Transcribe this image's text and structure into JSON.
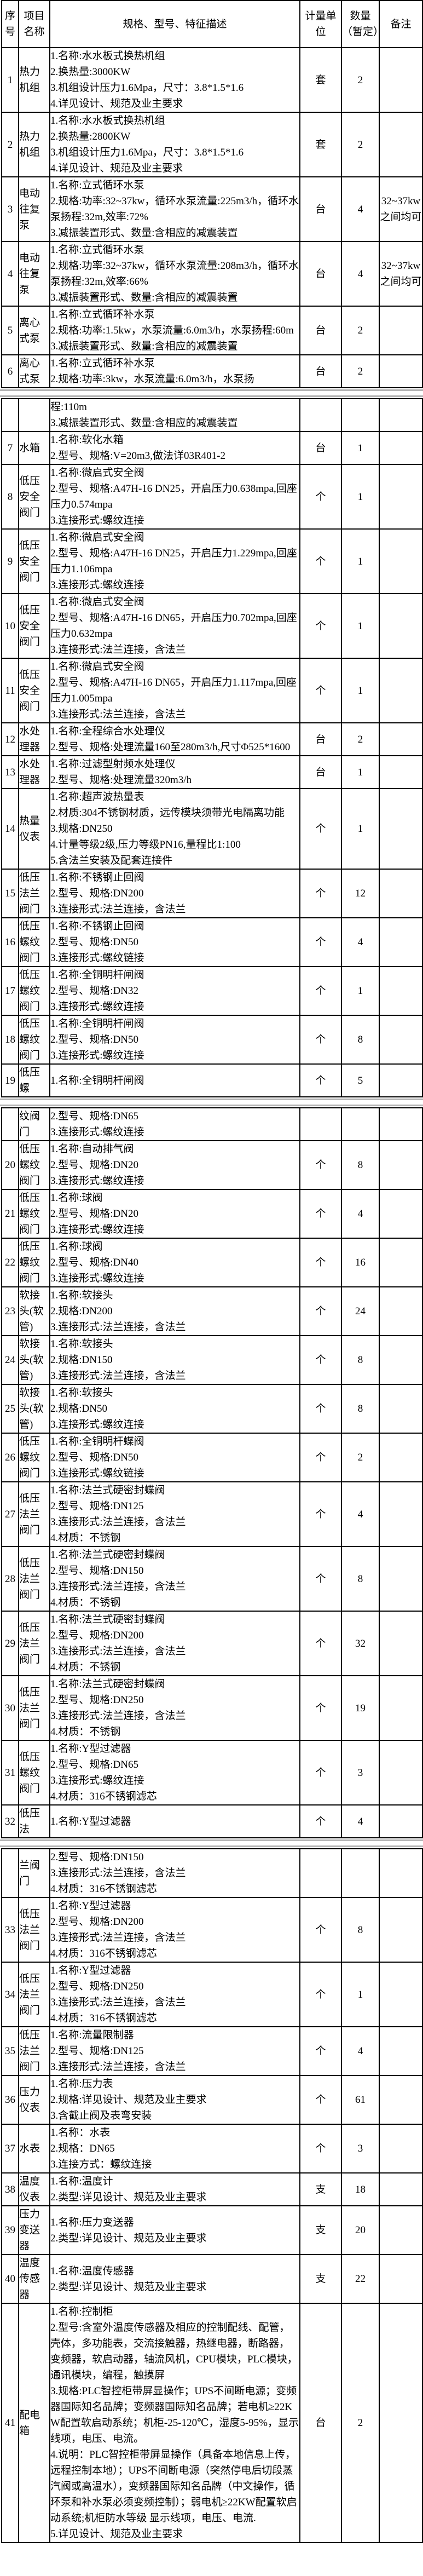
{
  "colors": {
    "border": "#000000",
    "text": "#000000",
    "page_gap_line": "#b5b5b5",
    "background": "#ffffff"
  },
  "table": {
    "columns": [
      "序号",
      "项目名称",
      "规格、型号、特征描述",
      "计量单位",
      "数量（暂定）",
      "备注"
    ],
    "pages": [
      {
        "rows": [
          {
            "no": "1",
            "name": "热力机组",
            "lines": [
              "1.名称:水水板式换热机组",
              "2.换热量:3000KW",
              "3.机组设计压力1.6Mpa，尺寸：3.8*1.5*1.6",
              "4.详见设计、规范及业主要求"
            ],
            "unit": "套",
            "qty": "2",
            "note": ""
          },
          {
            "no": "2",
            "name": "热力机组",
            "lines": [
              "1.名称:水水板式换热机组",
              "2.换热量:2800KW",
              "3.机组设计压力1.6Mpa，尺寸：3.8*1.5*1.6",
              "4.详见设计、规范及业主要求"
            ],
            "unit": "套",
            "qty": "2",
            "note": ""
          },
          {
            "no": "3",
            "name": "电动往复泵",
            "lines": [
              "1.名称:立式循环水泵",
              "2.规格:功率:32~37kw，循环水泵流量:225m3/h，循环水泵扬程:32m,效率:72%",
              "3.减振装置形式、数量:含相应的减震装置"
            ],
            "unit": "台",
            "qty": "4",
            "note": "32~37kw之间均可"
          },
          {
            "no": "4",
            "name": "电动往复泵",
            "lines": [
              "1.名称:立式循环水泵",
              "2.规格:功率:32~37kw，循环水泵流量:208m3/h，循环水泵扬程:32m,效率:66%",
              "3.减振装置形式、数量:含相应的减震装置"
            ],
            "unit": "台",
            "qty": "4",
            "note": "32~37kw之间均可"
          },
          {
            "no": "5",
            "name": "离心式泵",
            "lines": [
              "1.名称:立式循环补水泵",
              "2.规格:功率:1.5kw，水泵流量:6.0m3/h，水泵扬程:60m",
              "3.减振装置形式、数量:含相应的减震装置"
            ],
            "unit": "台",
            "qty": "2",
            "note": ""
          },
          {
            "no": "6",
            "name": "离心式泵",
            "lines": [
              "1.名称:立式循环补水泵",
              "2.规格:功率:3kw，水泵流量:6.0m3/h，水泵扬"
            ],
            "unit": "台",
            "qty": "2",
            "note": ""
          }
        ]
      },
      {
        "rows": [
          {
            "no": "",
            "name": "",
            "lines": [
              "程:110m",
              "3.减振装置形式、数量:含相应的减震装置"
            ],
            "unit": "",
            "qty": "",
            "note": ""
          },
          {
            "no": "7",
            "name": "水箱",
            "lines": [
              "1.名称:软化水箱",
              "2.型号、规格:V=20m3,做法详03R401-2"
            ],
            "unit": "台",
            "qty": "1",
            "note": ""
          },
          {
            "no": "8",
            "name": "低压安全阀门",
            "lines": [
              "1.名称:微启式安全阀",
              "2.型号、规格:A47H-16 DN25，开启压力0.638mpa,回座压力0.574mpa",
              "3.连接形式:螺纹连接"
            ],
            "unit": "个",
            "qty": "1",
            "note": ""
          },
          {
            "no": "9",
            "name": "低压安全阀门",
            "lines": [
              "1.名称:微启式安全阀",
              "2.型号、规格:A47H-16 DN25，开启压力1.229mpa,回座压力1.106mpa",
              "3.连接形式:螺纹连接"
            ],
            "unit": "个",
            "qty": "1",
            "note": ""
          },
          {
            "no": "10",
            "name": "低压安全阀门",
            "lines": [
              "1.名称:微启式安全阀",
              "2.型号、规格:A47H-16 DN65，开启压力0.702mpa,回座压力0.632mpa",
              "3.连接形式:法兰连接，含法兰"
            ],
            "unit": "个",
            "qty": "1",
            "note": ""
          },
          {
            "no": "11",
            "name": "低压安全阀门",
            "lines": [
              "1.名称:微启式安全阀",
              "2.型号、规格:A47H-16 DN65，开启压力1.117mpa,回座压力1.005mpa",
              "3.连接形式:法兰连接，含法兰"
            ],
            "unit": "个",
            "qty": "1",
            "note": ""
          },
          {
            "no": "12",
            "name": "水处理器",
            "lines": [
              "1.名称:全程综合水处理仪",
              "2.型号、规格:处理流量160至280m3/h,尺寸Φ525*1600"
            ],
            "unit": "台",
            "qty": "2",
            "note": ""
          },
          {
            "no": "13",
            "name": "水处理器",
            "lines": [
              "1.名称:过滤型射频水处理仪",
              "2.型号、规格:处理流量320m3/h"
            ],
            "unit": "台",
            "qty": "1",
            "note": ""
          },
          {
            "no": "14",
            "name": "热量仪表",
            "lines": [
              "1.名称:超声波热量表",
              "2.材质:304不锈钢材质，远传模块须带光电隔离功能",
              "3.规格:DN250",
              "4.计量等级2级,压力等级PN16,量程比1:100",
              "5.含法兰安装及配套连接件"
            ],
            "unit": "个",
            "qty": "1",
            "note": ""
          },
          {
            "no": "15",
            "name": "低压法兰阀门",
            "lines": [
              "1.名称:不锈钢止回阀",
              "2.型号、规格:DN200",
              "3.连接形式:法兰连接，含法兰"
            ],
            "unit": "个",
            "qty": "12",
            "note": ""
          },
          {
            "no": "16",
            "name": "低压螺纹阀门",
            "lines": [
              "1.名称:不锈钢止回阀",
              "2.型号、规格:DN50",
              "3.连接形式:螺纹链接"
            ],
            "unit": "个",
            "qty": "4",
            "note": ""
          },
          {
            "no": "17",
            "name": "低压螺纹阀门",
            "lines": [
              "1.名称:全铜明杆闸阀",
              "2.型号、规格:DN32",
              "3.连接形式:螺纹连接"
            ],
            "unit": "个",
            "qty": "1",
            "note": ""
          },
          {
            "no": "18",
            "name": "低压螺纹阀门",
            "lines": [
              "1.名称:全铜明杆闸阀",
              "2.型号、规格:DN50",
              "3.连接形式:螺纹连接"
            ],
            "unit": "个",
            "qty": "8",
            "note": ""
          },
          {
            "no": "19",
            "name": "低压螺",
            "lines": [
              "1.名称:全铜明杆闸阀"
            ],
            "unit": "个",
            "qty": "5",
            "note": ""
          }
        ]
      },
      {
        "rows": [
          {
            "no": "",
            "name": "纹阀门",
            "lines": [
              "2.型号、规格:DN65",
              "3.连接形式:螺纹连接"
            ],
            "unit": "",
            "qty": "",
            "note": ""
          },
          {
            "no": "20",
            "name": "低压螺纹阀门",
            "lines": [
              "1.名称:自动排气阀",
              "2.型号、规格:DN20",
              "3.连接形式:螺纹连接"
            ],
            "unit": "个",
            "qty": "8",
            "note": ""
          },
          {
            "no": "21",
            "name": "低压螺纹阀门",
            "lines": [
              "1.名称:球阀",
              "2.型号、规格:DN20",
              "3.连接形式:螺纹连接"
            ],
            "unit": "个",
            "qty": "4",
            "note": ""
          },
          {
            "no": "22",
            "name": "低压螺纹阀门",
            "lines": [
              "1.名称:球阀",
              "2.型号、规格:DN40",
              "3.连接形式:螺纹连接"
            ],
            "unit": "个",
            "qty": "16",
            "note": ""
          },
          {
            "no": "23",
            "name": "软接头(软管)",
            "lines": [
              "1.名称:软接头",
              "2.规格:DN200",
              "3.连接形式:法兰连接，含法兰"
            ],
            "unit": "个",
            "qty": "24",
            "note": ""
          },
          {
            "no": "24",
            "name": "软接头(软管)",
            "lines": [
              "1.名称:软接头",
              "2.规格:DN150",
              "3.连接形式:法兰连接，含法兰"
            ],
            "unit": "个",
            "qty": "8",
            "note": ""
          },
          {
            "no": "25",
            "name": "软接头(软管)",
            "lines": [
              "1.名称:软接头",
              "2.规格:DN50",
              "3.连接形式:螺纹连接"
            ],
            "unit": "个",
            "qty": "8",
            "note": ""
          },
          {
            "no": "26",
            "name": "低压螺纹阀门",
            "lines": [
              "1.名称:全铜明杆蝶阀",
              "2.型号、规格:DN50",
              "3.连接形式:螺纹链接"
            ],
            "unit": "个",
            "qty": "2",
            "note": ""
          },
          {
            "no": "27",
            "name": "低压法兰阀门",
            "lines": [
              "1.名称:法兰式硬密封蝶阀",
              "2.型号、规格:DN125",
              "3.连接形式:法兰连接，含法兰",
              "4.材质：不锈钢"
            ],
            "unit": "个",
            "qty": "4",
            "note": ""
          },
          {
            "no": "28",
            "name": "低压法兰阀门",
            "lines": [
              "1.名称:法兰式硬密封蝶阀",
              "2.型号、规格:DN150",
              "3.连接形式:法兰连接，含法兰",
              "4.材质：不锈钢"
            ],
            "unit": "个",
            "qty": "8",
            "note": ""
          },
          {
            "no": "29",
            "name": "低压法兰阀门",
            "lines": [
              "1.名称:法兰式硬密封蝶阀",
              "2.型号、规格:DN200",
              "3.连接形式:法兰连接，含法兰",
              "4.材质：不锈钢"
            ],
            "unit": "个",
            "qty": "32",
            "note": ""
          },
          {
            "no": "30",
            "name": "低压法兰阀门",
            "lines": [
              "1.名称:法兰式硬密封蝶阀",
              "2.型号、规格:DN250",
              "3.连接形式:法兰连接，含法兰",
              "4.材质：不锈钢"
            ],
            "unit": "个",
            "qty": "19",
            "note": ""
          },
          {
            "no": "31",
            "name": "低压螺纹阀门",
            "lines": [
              "1.名称:Y型过滤器",
              "2.型号、规格:DN65",
              "3.连接形式:螺纹连接",
              "4.材质：316不锈钢滤芯"
            ],
            "unit": "个",
            "qty": "3",
            "note": ""
          },
          {
            "no": "32",
            "name": "低压法",
            "lines": [
              "1.名称:Y型过滤器"
            ],
            "unit": "个",
            "qty": "4",
            "note": ""
          }
        ]
      },
      {
        "rows": [
          {
            "no": "",
            "name": "兰阀门",
            "lines": [
              "2.型号、规格:DN150",
              "3.连接形式:法兰连接，含法兰",
              "4.材质：316不锈钢滤芯"
            ],
            "unit": "",
            "qty": "",
            "note": ""
          },
          {
            "no": "33",
            "name": "低压法兰阀门",
            "lines": [
              "1.名称:Y型过滤器",
              "2.型号、规格:DN200",
              "3.连接形式:法兰连接，含法兰",
              "4.材质：316不锈钢滤芯"
            ],
            "unit": "个",
            "qty": "8",
            "note": ""
          },
          {
            "no": "34",
            "name": "低压法兰阀门",
            "lines": [
              "1.名称:Y型过滤器",
              "2.型号、规格:DN250",
              "3.连接形式:法兰连接，含法兰",
              "4.材质：316不锈钢滤芯"
            ],
            "unit": "个",
            "qty": "1",
            "note": ""
          },
          {
            "no": "35",
            "name": "低压法兰阀门",
            "lines": [
              "1.名称:流量限制器",
              "2.型号、规格:DN125",
              "3.连接形式:法兰连接，含法兰"
            ],
            "unit": "个",
            "qty": "4",
            "note": ""
          },
          {
            "no": "36",
            "name": "压力仪表",
            "lines": [
              "1.名称:压力表",
              "2.规格:详见设计、规范及业主要求",
              "3.含截止阀及表弯安装"
            ],
            "unit": "个",
            "qty": "61",
            "note": ""
          },
          {
            "no": "37",
            "name": "水表",
            "lines": [
              "1.名称：水表",
              "2.规格：DN65",
              "3.连接方式：螺纹连接"
            ],
            "unit": "个",
            "qty": "3",
            "note": ""
          },
          {
            "no": "38",
            "name": "温度仪表",
            "lines": [
              "1.名称:温度计",
              "2.类型:详见设计、规范及业主要求"
            ],
            "unit": "支",
            "qty": "18",
            "note": ""
          },
          {
            "no": "39",
            "name": "压力变送器",
            "lines": [
              "1.名称:压力变送器",
              "2.类型:详见设计、规范及业主要求"
            ],
            "unit": "支",
            "qty": "20",
            "note": ""
          },
          {
            "no": "40",
            "name": "温度传感器",
            "lines": [
              "1.名称:温度传感器",
              "2.类型:详见设计、规范及业主要求"
            ],
            "unit": "支",
            "qty": "22",
            "note": ""
          },
          {
            "no": "41",
            "name": "配电箱",
            "lines": [
              "1.名称:控制柜",
              "2.型号:含室外温度传感器及相应的控制配线、配管，壳体，多功能表，交流接触器，热继电器，断路器，变频器，软启动器，轴流风机，CPU模块，PLC模块，通讯模块，编程，触摸屏",
              "3.规格:PLC智控柜带屏显操作；UPS不间断电源；变频器国际知名品牌；变频器国际知名品牌；若电机≥22KW配置软启动系统；机柜-25-120℃，湿度5-95%，显示线项，电压、电流。",
              "4.说明：PLC智控柜带屏显操作（具备本地信息上传，远程控制本地）；UPS不间断电源（突然停电后切段蒸汽阀或高温水），变频器国际知名品牌（中文操作，循环泵和补水泵必须变频控制）；弱电机≥22KW配置软启动系统;机柜防水等级 显示线项，电压、电流.",
              "5.详见设计、规范及业主要求"
            ],
            "unit": "台",
            "qty": "2",
            "note": ""
          }
        ]
      }
    ]
  }
}
